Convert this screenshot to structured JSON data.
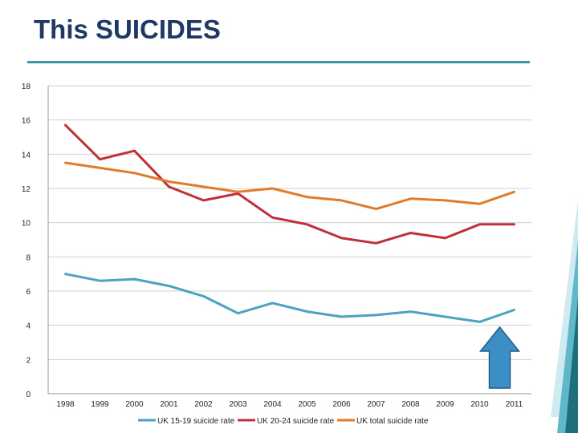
{
  "slide": {
    "title": "This SUICIDES"
  },
  "colors": {
    "title": "#1f3864",
    "rule": "#3a9aa8",
    "grid": "#d0d0d0",
    "arrow_fill": "#3b8fc4",
    "arrow_stroke": "#1f5f8a"
  },
  "chart_data": {
    "type": "line",
    "title": "",
    "xlabel": "",
    "ylabel": "",
    "ylim": [
      0,
      18
    ],
    "yticks": [
      0,
      2,
      4,
      6,
      8,
      10,
      12,
      14,
      16,
      18
    ],
    "grid": true,
    "legend_position": "bottom",
    "categories": [
      "1998",
      "1999",
      "2000",
      "2001",
      "2002",
      "2003",
      "2004",
      "2005",
      "2006",
      "2007",
      "2008",
      "2009",
      "2010",
      "2011"
    ],
    "series": [
      {
        "name": "UK 15-19 suicide rate",
        "color": "#4aa3c0",
        "values": [
          7.0,
          6.6,
          6.7,
          6.3,
          5.7,
          4.7,
          5.3,
          4.8,
          4.5,
          4.6,
          4.8,
          4.5,
          4.2,
          4.9
        ]
      },
      {
        "name": "UK 20-24 suicide rate",
        "color": "#c0303a",
        "values": [
          15.7,
          13.7,
          14.2,
          12.1,
          11.3,
          11.7,
          10.3,
          9.9,
          9.1,
          8.8,
          9.4,
          9.1,
          9.9,
          9.9
        ]
      },
      {
        "name": "UK total suicide rate",
        "color": "#e07b2a",
        "values": [
          13.5,
          13.2,
          12.9,
          12.4,
          12.1,
          11.8,
          12.0,
          11.5,
          11.3,
          10.8,
          11.4,
          11.3,
          11.1,
          11.8
        ]
      }
    ],
    "annotation": {
      "type": "up-arrow",
      "at_category": "2010"
    }
  }
}
